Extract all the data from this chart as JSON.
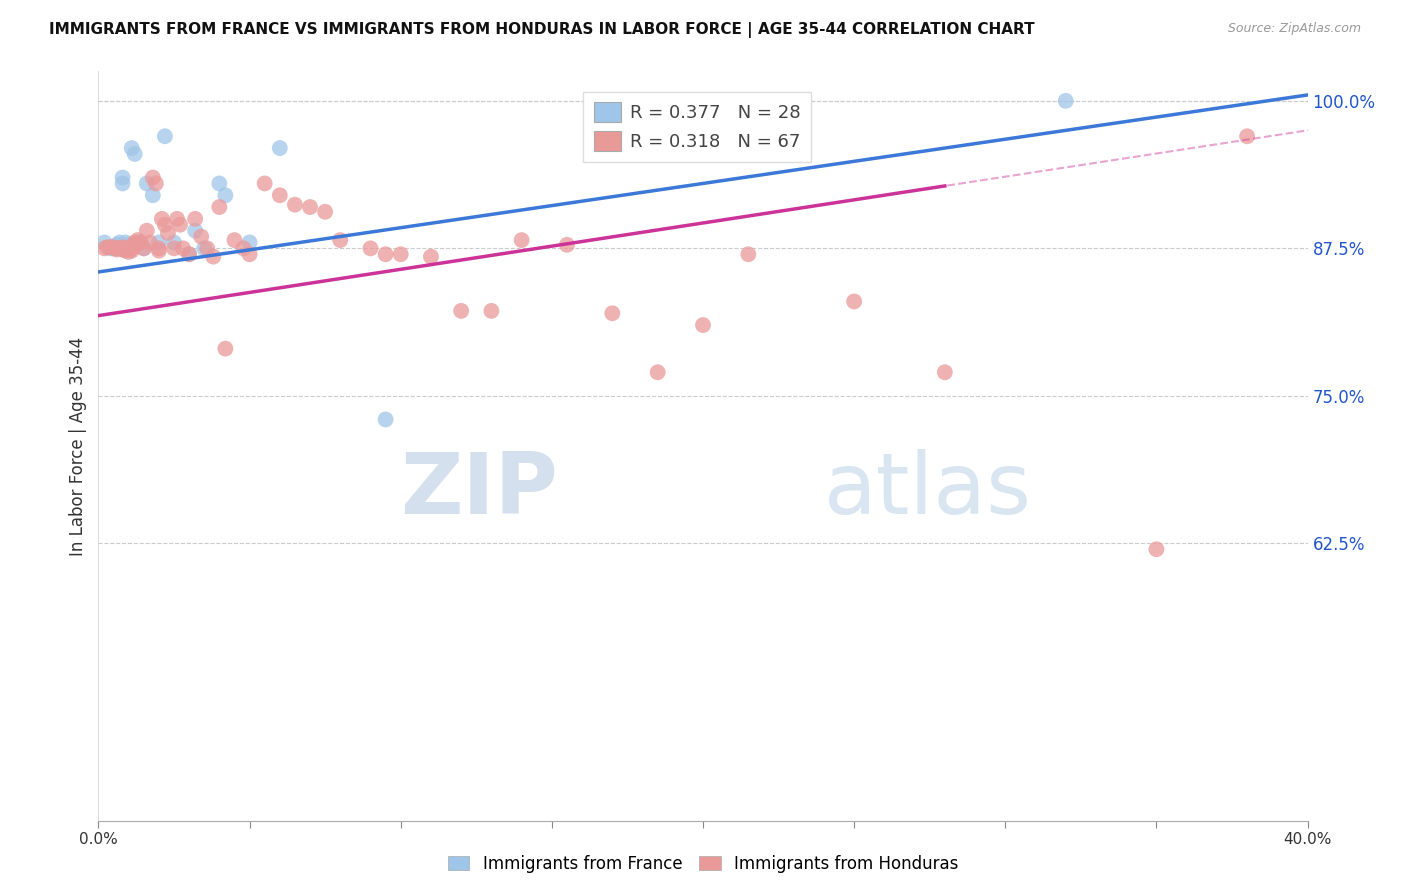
{
  "title": "IMMIGRANTS FROM FRANCE VS IMMIGRANTS FROM HONDURAS IN LABOR FORCE | AGE 35-44 CORRELATION CHART",
  "source": "Source: ZipAtlas.com",
  "ylabel": "In Labor Force | Age 35-44",
  "france_R": 0.377,
  "france_N": 28,
  "honduras_R": 0.318,
  "honduras_N": 67,
  "france_color": "#9fc5e8",
  "honduras_color": "#ea9999",
  "france_line_color": "#3c78d8",
  "honduras_line_color": "#cc3399",
  "xmin": 0.0,
  "xmax": 0.4,
  "ymin": 0.39,
  "ymax": 1.025,
  "right_yticks": [
    1.0,
    0.875,
    0.75,
    0.625
  ],
  "xtick_positions": [
    0.0,
    0.05,
    0.1,
    0.15,
    0.2,
    0.25,
    0.3,
    0.35,
    0.4
  ],
  "xtick_labels_show": [
    "0.0%",
    "",
    "",
    "",
    "",
    "",
    "",
    "",
    "40.0%"
  ],
  "watermark_zip": "ZIP",
  "watermark_atlas": "atlas",
  "legend_france_label": "Immigrants from France",
  "legend_honduras_label": "Immigrants from Honduras",
  "france_line_x0": 0.0,
  "france_line_y0": 0.855,
  "france_line_x1": 0.4,
  "france_line_y1": 1.005,
  "honduras_line_x0": 0.0,
  "honduras_line_y0": 0.818,
  "honduras_line_x1": 0.4,
  "honduras_line_y1": 0.975,
  "france_x": [
    0.002,
    0.004,
    0.005,
    0.006,
    0.007,
    0.008,
    0.008,
    0.009,
    0.01,
    0.01,
    0.011,
    0.012,
    0.013,
    0.015,
    0.016,
    0.018,
    0.02,
    0.022,
    0.025,
    0.03,
    0.032,
    0.035,
    0.04,
    0.042,
    0.05,
    0.06,
    0.095,
    0.32
  ],
  "france_y": [
    0.88,
    0.875,
    0.875,
    0.878,
    0.88,
    0.935,
    0.93,
    0.88,
    0.878,
    0.876,
    0.96,
    0.955,
    0.88,
    0.875,
    0.93,
    0.92,
    0.88,
    0.97,
    0.88,
    0.87,
    0.89,
    0.875,
    0.93,
    0.92,
    0.88,
    0.96,
    0.73,
    1.0
  ],
  "honduras_x": [
    0.002,
    0.003,
    0.004,
    0.005,
    0.006,
    0.006,
    0.007,
    0.008,
    0.008,
    0.008,
    0.009,
    0.009,
    0.01,
    0.01,
    0.01,
    0.011,
    0.011,
    0.012,
    0.012,
    0.013,
    0.014,
    0.015,
    0.016,
    0.017,
    0.018,
    0.019,
    0.02,
    0.02,
    0.021,
    0.022,
    0.023,
    0.025,
    0.026,
    0.027,
    0.028,
    0.03,
    0.032,
    0.034,
    0.036,
    0.038,
    0.04,
    0.042,
    0.045,
    0.048,
    0.05,
    0.055,
    0.06,
    0.065,
    0.07,
    0.075,
    0.08,
    0.09,
    0.095,
    0.1,
    0.11,
    0.12,
    0.13,
    0.14,
    0.155,
    0.17,
    0.185,
    0.2,
    0.215,
    0.25,
    0.28,
    0.35,
    0.38
  ],
  "honduras_y": [
    0.875,
    0.876,
    0.876,
    0.876,
    0.875,
    0.874,
    0.875,
    0.876,
    0.875,
    0.874,
    0.875,
    0.873,
    0.875,
    0.874,
    0.872,
    0.875,
    0.873,
    0.88,
    0.878,
    0.882,
    0.88,
    0.875,
    0.89,
    0.88,
    0.935,
    0.93,
    0.875,
    0.873,
    0.9,
    0.895,
    0.888,
    0.875,
    0.9,
    0.895,
    0.875,
    0.87,
    0.9,
    0.885,
    0.875,
    0.868,
    0.91,
    0.79,
    0.882,
    0.875,
    0.87,
    0.93,
    0.92,
    0.912,
    0.91,
    0.906,
    0.882,
    0.875,
    0.87,
    0.87,
    0.868,
    0.822,
    0.822,
    0.882,
    0.878,
    0.82,
    0.77,
    0.81,
    0.87,
    0.83,
    0.77,
    0.62,
    0.97
  ]
}
